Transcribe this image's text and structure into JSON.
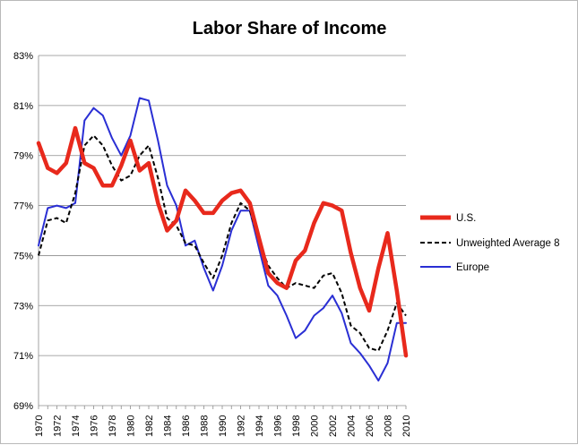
{
  "chart_data": {
    "type": "line",
    "title": "Labor Share of Income",
    "xlabel": "",
    "ylabel": "",
    "ylim": [
      69,
      83
    ],
    "xlim": [
      1970,
      2010
    ],
    "grid": "horizontal",
    "legend_position": "right",
    "y_ticks": [
      "83%",
      "81%",
      "79%",
      "77%",
      "75%",
      "73%",
      "71%",
      "69%"
    ],
    "y_tick_values": [
      83,
      81,
      79,
      77,
      75,
      73,
      71,
      69
    ],
    "x_ticks": [
      "1970",
      "1972",
      "1974",
      "1976",
      "1978",
      "1980",
      "1982",
      "1984",
      "1986",
      "1988",
      "1990",
      "1992",
      "1994",
      "1996",
      "1998",
      "2000",
      "2002",
      "2004",
      "2006",
      "2008",
      "2010"
    ],
    "x": [
      1970,
      1971,
      1972,
      1973,
      1974,
      1975,
      1976,
      1977,
      1978,
      1979,
      1980,
      1981,
      1982,
      1983,
      1984,
      1985,
      1986,
      1987,
      1988,
      1989,
      1990,
      1991,
      1992,
      1993,
      1994,
      1995,
      1996,
      1997,
      1998,
      1999,
      2000,
      2001,
      2002,
      2003,
      2004,
      2005,
      2006,
      2007,
      2008,
      2009,
      2010
    ],
    "series": [
      {
        "name": "U.S.",
        "color": "#e8291c",
        "style": "solid-thick",
        "values": [
          79.5,
          78.5,
          78.3,
          78.7,
          80.1,
          78.7,
          78.5,
          77.8,
          77.8,
          78.6,
          79.6,
          78.4,
          78.7,
          77.1,
          76.0,
          76.4,
          77.6,
          77.2,
          76.7,
          76.7,
          77.2,
          77.5,
          77.6,
          77.1,
          75.7,
          74.3,
          73.9,
          73.7,
          74.8,
          75.2,
          76.3,
          77.1,
          77.0,
          76.8,
          75.1,
          73.7,
          72.8,
          74.5,
          75.9,
          73.6,
          71.0
        ]
      },
      {
        "name": "Unweighted Average 8",
        "color": "#000000",
        "style": "dashed",
        "values": [
          75.0,
          76.4,
          76.5,
          76.3,
          77.5,
          79.4,
          79.8,
          79.4,
          78.6,
          78.0,
          78.2,
          79.0,
          79.4,
          78.1,
          76.5,
          76.2,
          75.5,
          75.4,
          74.7,
          74.1,
          75.0,
          76.3,
          77.1,
          76.8,
          75.6,
          74.6,
          74.1,
          73.7,
          73.9,
          73.8,
          73.7,
          74.2,
          74.3,
          73.5,
          72.2,
          71.9,
          71.3,
          71.2,
          72.0,
          73.1,
          72.6
        ]
      },
      {
        "name": "Europe",
        "color": "#2a2fd4",
        "style": "solid",
        "values": [
          75.4,
          76.9,
          77.0,
          76.9,
          77.1,
          80.4,
          80.9,
          80.6,
          79.7,
          79.0,
          79.8,
          81.3,
          81.2,
          79.6,
          77.8,
          77.0,
          75.4,
          75.6,
          74.5,
          73.6,
          74.6,
          76.0,
          76.8,
          76.8,
          75.3,
          73.8,
          73.4,
          72.6,
          71.7,
          72.0,
          72.6,
          72.9,
          73.4,
          72.7,
          71.5,
          71.1,
          70.6,
          70.0,
          70.7,
          72.3,
          72.3
        ]
      }
    ]
  }
}
